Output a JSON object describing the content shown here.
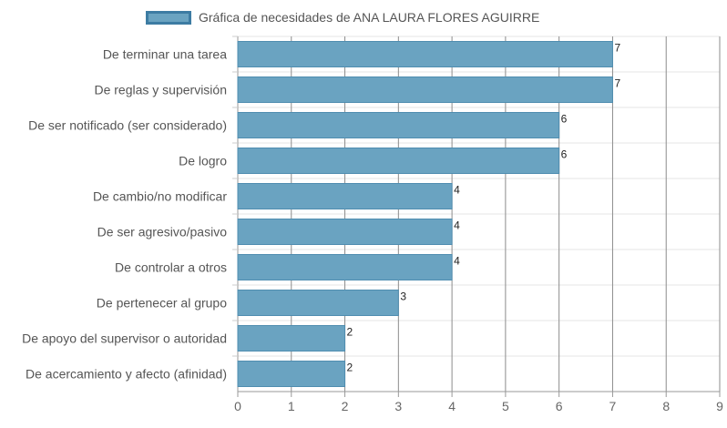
{
  "chart_data": {
    "type": "bar",
    "orientation": "horizontal",
    "categories": [
      "De terminar una tarea",
      "De reglas y supervisión",
      "De ser notificado (ser considerado)",
      "De logro",
      "De cambio/no modificar",
      "De ser agresivo/pasivo",
      "De controlar a otros",
      "De pertenecer al grupo",
      "De apoyo del supervisor o autoridad",
      "De acercamiento y afecto (afinidad)"
    ],
    "series": [
      {
        "name": "Gráfica de necesidades de ANA LAURA FLORES AGUIRRE",
        "values": [
          7,
          7,
          6,
          6,
          4,
          4,
          4,
          3,
          2,
          2
        ],
        "data_labels": [
          "7",
          "7",
          "6",
          "6",
          "4",
          "4",
          "4",
          "3",
          "2",
          "2"
        ]
      }
    ],
    "x_ticks": [
      "0",
      "1",
      "2",
      "3",
      "4",
      "5",
      "6",
      "7",
      "8",
      "9"
    ],
    "xlim": [
      0,
      9
    ],
    "grid": true,
    "legend_position": "top",
    "colors": {
      "bar_fill": "#6aa3c1",
      "bar_border": "#4f8db0",
      "legend_border": "#3d7ca3",
      "grid": "#999999"
    }
  }
}
